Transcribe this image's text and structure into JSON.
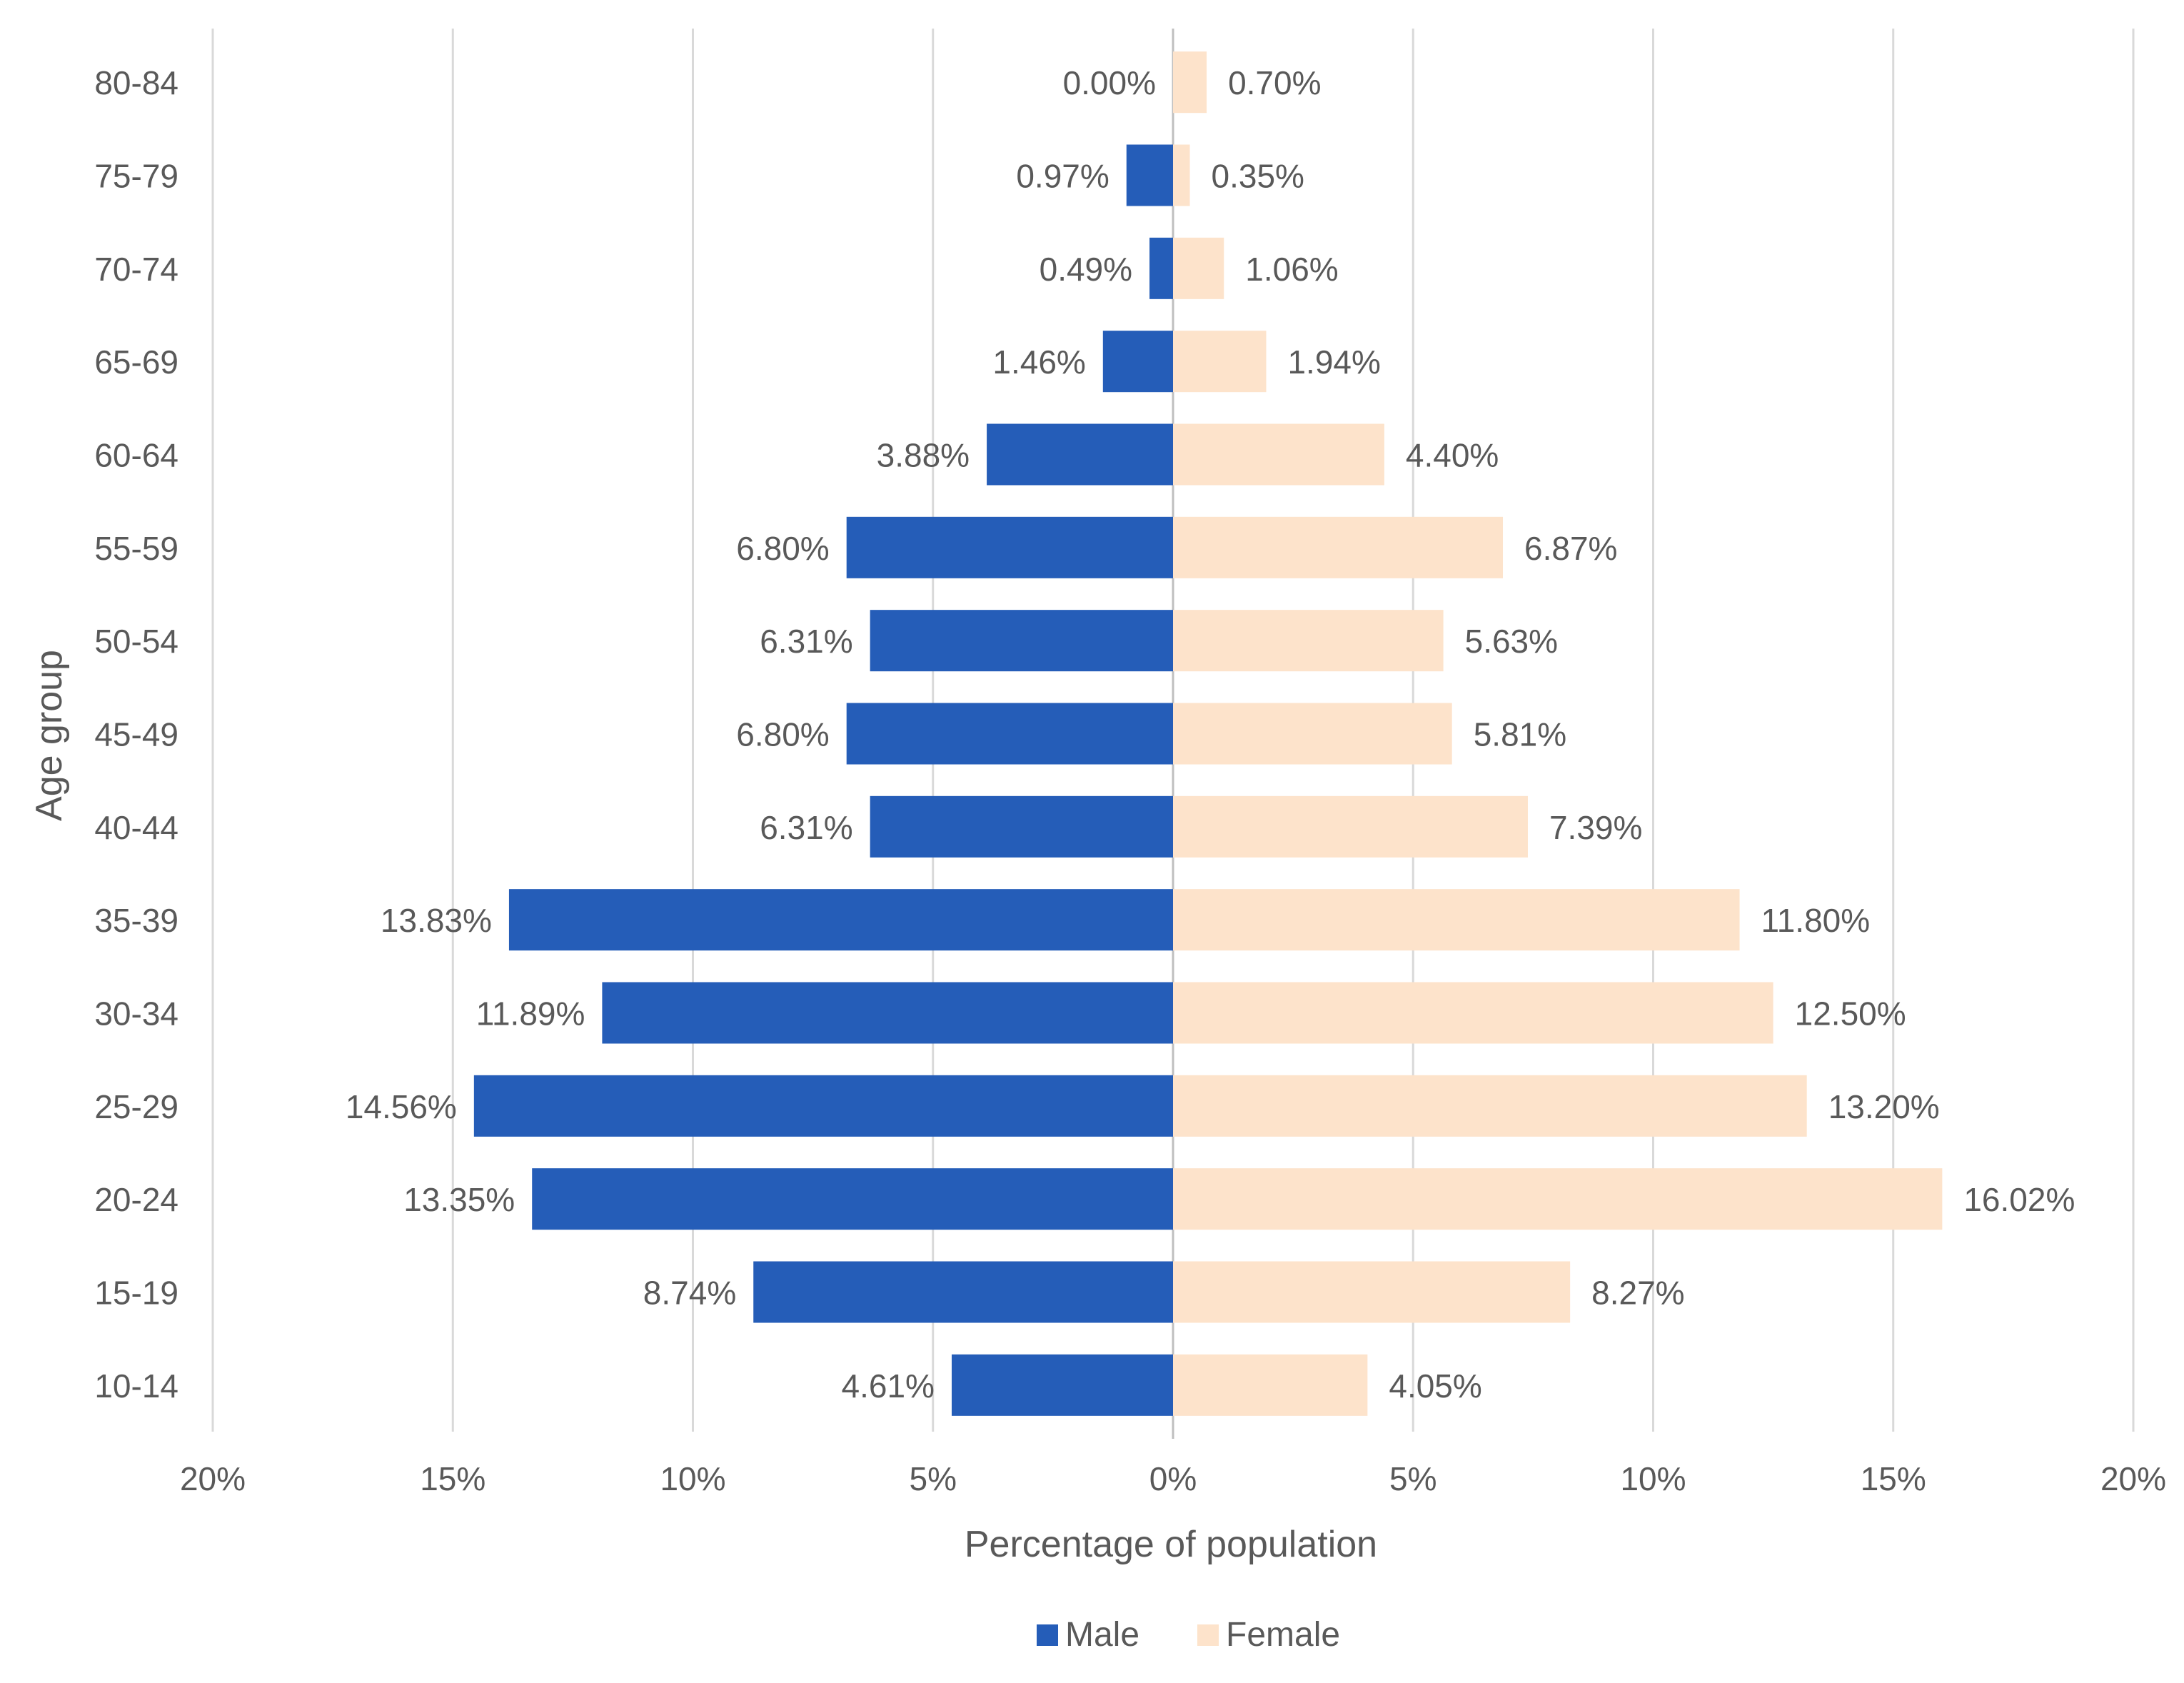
{
  "chart_data": {
    "type": "bar",
    "orientation": "horizontal",
    "subtype": "population-pyramid",
    "title": "",
    "xlabel": "Percentage of population",
    "ylabel": "Age group",
    "xlim": [
      -20,
      20
    ],
    "x_ticks": [
      -20,
      -15,
      -10,
      -5,
      0,
      5,
      10,
      15,
      20
    ],
    "x_tick_labels": [
      "20%",
      "15%",
      "10%",
      "5%",
      "0%",
      "5%",
      "10%",
      "15%",
      "20%"
    ],
    "grid": "vertical",
    "legend_position": "bottom",
    "categories": [
      "80-84",
      "75-79",
      "70-74",
      "65-69",
      "60-64",
      "55-59",
      "50-54",
      "45-49",
      "40-44",
      "35-39",
      "30-34",
      "25-29",
      "20-24",
      "15-19",
      "10-14"
    ],
    "series": [
      {
        "name": "Male",
        "color": "#255db8",
        "direction": "left",
        "values": [
          0.0,
          0.97,
          0.49,
          1.46,
          3.88,
          6.8,
          6.31,
          6.8,
          6.31,
          13.83,
          11.89,
          14.56,
          13.35,
          8.74,
          4.61
        ],
        "labels": [
          "0.00%",
          "0.97%",
          "0.49%",
          "1.46%",
          "3.88%",
          "6.80%",
          "6.31%",
          "6.80%",
          "6.31%",
          "13.83%",
          "11.89%",
          "14.56%",
          "13.35%",
          "8.74%",
          "4.61%"
        ]
      },
      {
        "name": "Female",
        "color": "#fde3cb",
        "direction": "right",
        "values": [
          0.7,
          0.35,
          1.06,
          1.94,
          4.4,
          6.87,
          5.63,
          5.81,
          7.39,
          11.8,
          12.5,
          13.2,
          16.02,
          8.27,
          4.05
        ],
        "labels": [
          "0.70%",
          "0.35%",
          "1.06%",
          "1.94%",
          "4.40%",
          "6.87%",
          "5.63%",
          "5.81%",
          "7.39%",
          "11.80%",
          "12.50%",
          "13.20%",
          "16.02%",
          "8.27%",
          "4.05%"
        ]
      }
    ],
    "colors": {
      "grid": "#d9d9d9",
      "axis": "#bfbfbf",
      "text": "#595959"
    }
  }
}
